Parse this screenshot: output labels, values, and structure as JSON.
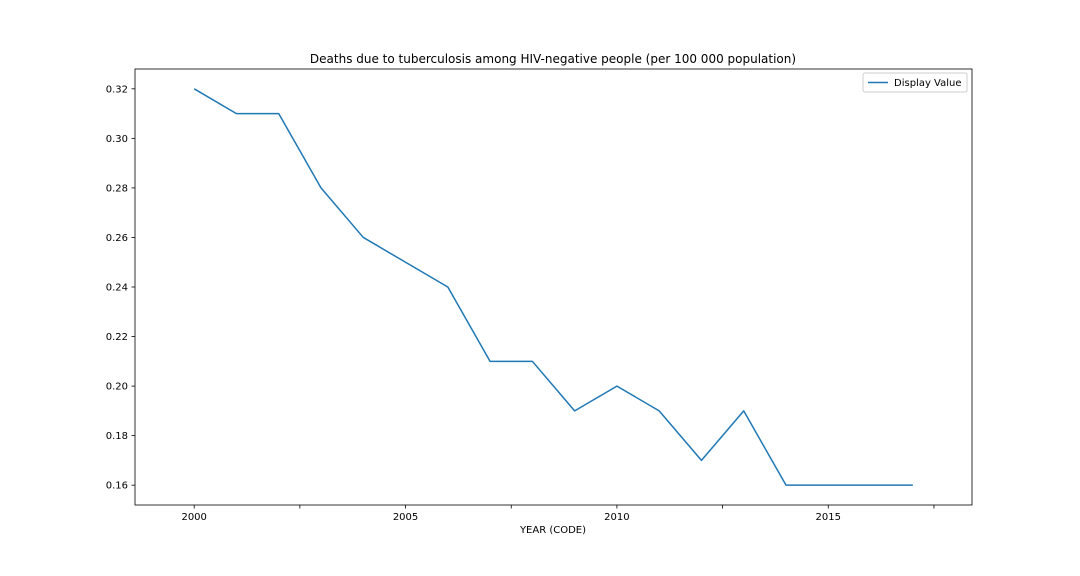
{
  "chart_data": {
    "type": "line",
    "title": "Deaths due to tuberculosis among HIV-negative people (per 100 000 population)",
    "xlabel": "YEAR (CODE)",
    "ylabel": "",
    "xlim": [
      1998.6,
      2018.4
    ],
    "ylim": [
      0.152,
      0.328
    ],
    "x_ticks": [
      2000,
      2005,
      2010,
      2015
    ],
    "x_minor_ticks": [
      2002.5,
      2007.5,
      2012.5,
      2017.5
    ],
    "y_ticks": [
      0.16,
      0.18,
      0.2,
      0.22,
      0.24,
      0.26,
      0.28,
      0.3,
      0.32
    ],
    "y_tick_labels": [
      "0.16",
      "0.18",
      "0.20",
      "0.22",
      "0.24",
      "0.26",
      "0.28",
      "0.30",
      "0.32"
    ],
    "grid": false,
    "legend": "top-right",
    "series": [
      {
        "name": "Display Value",
        "color": "#1f77b4",
        "x": [
          2000,
          2001,
          2002,
          2003,
          2004,
          2005,
          2006,
          2007,
          2008,
          2009,
          2010,
          2011,
          2012,
          2013,
          2014,
          2015,
          2016,
          2017
        ],
        "y": [
          0.32,
          0.31,
          0.31,
          0.28,
          0.26,
          0.25,
          0.24,
          0.21,
          0.21,
          0.19,
          0.2,
          0.19,
          0.17,
          0.19,
          0.16,
          0.16,
          0.16,
          0.16
        ]
      }
    ]
  }
}
